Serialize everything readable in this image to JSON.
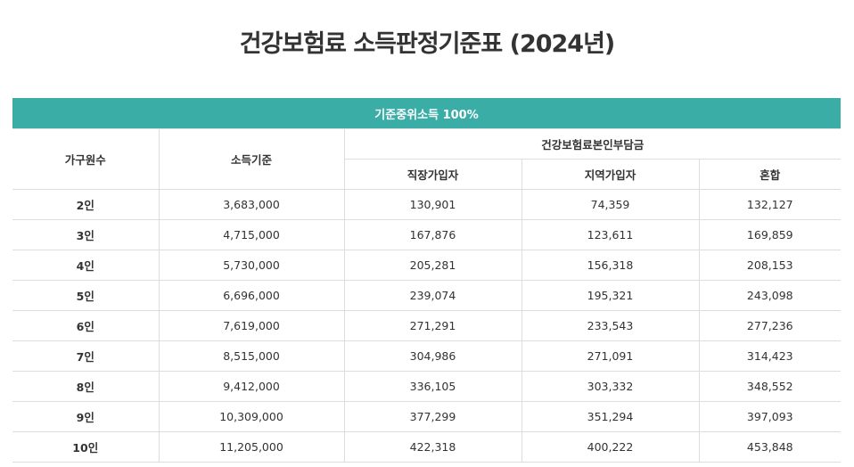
{
  "title": "건강보험료 소득판정기준표 (2024년)",
  "table": {
    "banner": "기준중위소득 100%",
    "headers": {
      "household": "가구원수",
      "income": "소득기준",
      "group": "건강보험료본인부담금",
      "employee": "직장가입자",
      "regional": "지역가입자",
      "mixed": "혼합"
    },
    "rows": [
      {
        "household": "2인",
        "income": "3,683,000",
        "employee": "130,901",
        "regional": "74,359",
        "mixed": "132,127"
      },
      {
        "household": "3인",
        "income": "4,715,000",
        "employee": "167,876",
        "regional": "123,611",
        "mixed": "169,859"
      },
      {
        "household": "4인",
        "income": "5,730,000",
        "employee": "205,281",
        "regional": "156,318",
        "mixed": "208,153"
      },
      {
        "household": "5인",
        "income": "6,696,000",
        "employee": "239,074",
        "regional": "195,321",
        "mixed": "243,098"
      },
      {
        "household": "6인",
        "income": "7,619,000",
        "employee": "271,291",
        "regional": "233,543",
        "mixed": "277,236"
      },
      {
        "household": "7인",
        "income": "8,515,000",
        "employee": "304,986",
        "regional": "271,091",
        "mixed": "314,423"
      },
      {
        "household": "8인",
        "income": "9,412,000",
        "employee": "336,105",
        "regional": "303,332",
        "mixed": "348,552"
      },
      {
        "household": "9인",
        "income": "10,309,000",
        "employee": "377,299",
        "regional": "351,294",
        "mixed": "397,093"
      },
      {
        "household": "10인",
        "income": "11,205,000",
        "employee": "422,318",
        "regional": "400,222",
        "mixed": "453,848"
      }
    ]
  },
  "colors": {
    "banner": "#3aada7",
    "border": "#dddddd",
    "text": "#333333"
  }
}
